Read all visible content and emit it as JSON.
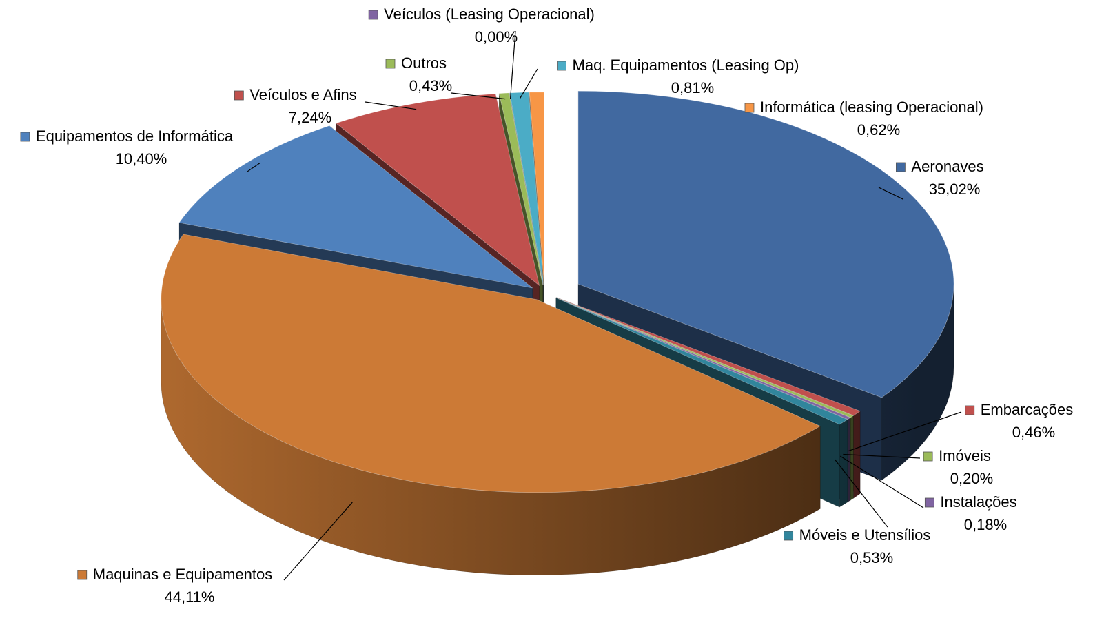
{
  "chart_data": {
    "type": "pie3d",
    "categories": [
      "Aeronaves",
      "Embarcações",
      "Imóveis",
      "Instalações",
      "Móveis e Utensílios",
      "Maquinas e Equipamentos",
      "Equipamentos de Informática",
      "Veículos e Afins",
      "Outros",
      "Veículos (Leasing Operacional)",
      "Maq. Equipamentos (Leasing Op)",
      "Informática (leasing Operacional)"
    ],
    "values": [
      35.02,
      0.46,
      0.2,
      0.18,
      0.53,
      44.11,
      10.4,
      7.24,
      0.43,
      0.0,
      0.81,
      0.62
    ],
    "value_labels": [
      "35,02%",
      "0,46%",
      "0,20%",
      "0,18%",
      "0,53%",
      "44,11%",
      "10,40%",
      "7,24%",
      "0,43%",
      "0,00%",
      "0,81%",
      "0,62%"
    ],
    "colors": [
      "#4169a0",
      "#c0504d",
      "#9bbb59",
      "#8064a2",
      "#31859c",
      "#cc7a36",
      "#4f81bd",
      "#c0504d",
      "#9bbb59",
      "#8064a2",
      "#4bacc6",
      "#f79646"
    ]
  }
}
